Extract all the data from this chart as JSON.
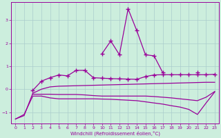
{
  "x": [
    0,
    1,
    2,
    3,
    4,
    5,
    6,
    7,
    8,
    9,
    10,
    11,
    12,
    13,
    14,
    15,
    16,
    17,
    18,
    19,
    20,
    21,
    22,
    23
  ],
  "line_spiky": [
    null,
    null,
    null,
    null,
    null,
    null,
    null,
    null,
    null,
    null,
    1.55,
    2.1,
    1.5,
    3.5,
    2.55,
    1.5,
    1.45,
    0.72,
    null,
    null,
    null,
    0.72,
    null,
    null
  ],
  "line_upper": [
    null,
    null,
    -0.05,
    0.35,
    0.5,
    0.62,
    0.58,
    0.82,
    0.82,
    0.5,
    0.48,
    0.46,
    0.45,
    0.44,
    0.43,
    0.55,
    0.62,
    0.63,
    0.63,
    0.63,
    0.63,
    0.63,
    0.63,
    0.65
  ],
  "line_mid1": [
    -1.3,
    -1.15,
    -0.18,
    0.0,
    0.1,
    0.13,
    0.14,
    0.15,
    0.16,
    0.17,
    0.18,
    0.19,
    0.2,
    0.21,
    0.22,
    0.23,
    0.24,
    0.25,
    0.26,
    0.27,
    0.28,
    0.29,
    0.3,
    0.3
  ],
  "line_mid2": [
    null,
    null,
    -0.22,
    -0.22,
    -0.22,
    -0.23,
    -0.23,
    -0.23,
    -0.25,
    -0.28,
    -0.3,
    -0.3,
    -0.3,
    -0.3,
    -0.3,
    -0.3,
    -0.32,
    -0.35,
    -0.38,
    -0.42,
    -0.46,
    -0.5,
    -0.35,
    -0.1
  ],
  "line_bottom": [
    -1.3,
    -1.1,
    -0.3,
    -0.3,
    -0.38,
    -0.42,
    -0.42,
    -0.42,
    -0.42,
    -0.42,
    -0.43,
    -0.44,
    -0.46,
    -0.48,
    -0.5,
    -0.55,
    -0.6,
    -0.65,
    -0.72,
    -0.78,
    -0.88,
    -1.1,
    -0.6,
    -0.12
  ],
  "color": "#990099",
  "bg_color": "#cceedd",
  "grid_color": "#aacccc",
  "xlabel": "Windchill (Refroidissement éolien,°C)",
  "ylim": [
    -1.5,
    3.8
  ],
  "xlim": [
    -0.5,
    23.5
  ],
  "yticks": [
    -1,
    0,
    1,
    2,
    3
  ],
  "xticks": [
    0,
    1,
    2,
    3,
    4,
    5,
    6,
    7,
    8,
    9,
    10,
    11,
    12,
    13,
    14,
    15,
    16,
    17,
    18,
    19,
    20,
    21,
    22,
    23
  ]
}
